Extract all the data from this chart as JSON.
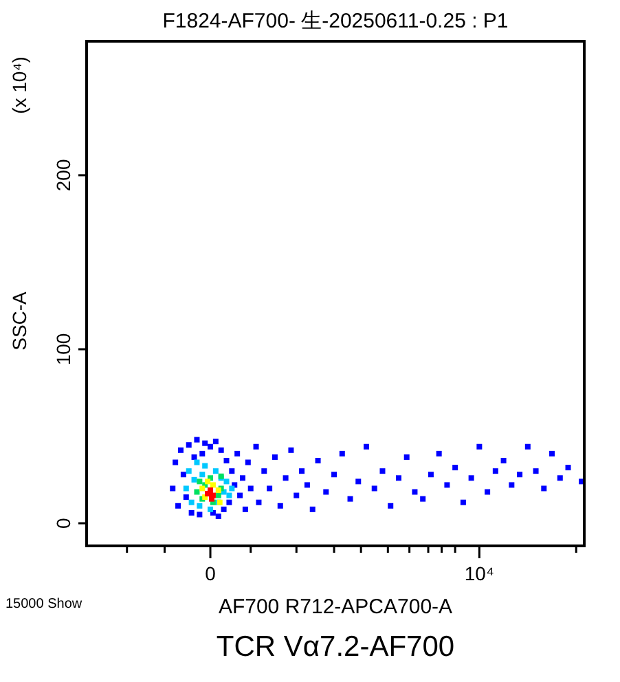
{
  "chart_data": {
    "type": "scatter",
    "title": "F1824-AF700- 生-20250611-0.25 : P1",
    "xlabel": "AF700 R712-APCA700-A",
    "ylabel": "SSC-A",
    "annotations": [
      "(x 10⁴)",
      "15000 Show",
      "TCR Vα7.2-AF700"
    ],
    "xlim": [
      -4600,
      13900
    ],
    "ylim": [
      -13,
      277
    ],
    "xticks": [
      {
        "value": -3100,
        "label": null
      },
      {
        "value": -1700,
        "label": null
      },
      {
        "value": 0,
        "label": "0"
      },
      {
        "value": 1500,
        "label": null
      },
      {
        "value": 3200,
        "label": null
      },
      {
        "value": 4600,
        "label": null
      },
      {
        "value": 5600,
        "label": null
      },
      {
        "value": 6600,
        "label": null
      },
      {
        "value": 7400,
        "label": null
      },
      {
        "value": 8100,
        "label": null
      },
      {
        "value": 8600,
        "label": null
      },
      {
        "value": 9100,
        "label": null
      },
      {
        "value": 10000,
        "label": "10⁴"
      },
      {
        "value": 13600,
        "label": null
      }
    ],
    "yticks": [
      0,
      100,
      200
    ],
    "marker": "square",
    "series": [
      {
        "color": "#0000ff",
        "x": [
          -1400,
          -1300,
          -1200,
          -1100,
          -1000,
          -900,
          -800,
          -700,
          -600,
          -500,
          -400,
          -300,
          -200,
          0,
          100,
          200,
          300,
          400,
          500,
          600,
          700,
          800,
          900,
          1000,
          1100,
          1200,
          1300,
          1400,
          1500,
          1700,
          1800,
          2000,
          2200,
          2400,
          2600,
          2800,
          3000,
          3200,
          3400,
          3600,
          3800,
          4000,
          4300,
          4600,
          4900,
          5200,
          5500,
          5800,
          6100,
          6400,
          6700,
          7000,
          7300,
          7600,
          7900,
          8200,
          8500,
          8800,
          9100,
          9400,
          9700,
          10000,
          10300,
          10600,
          10900,
          11200,
          11500,
          11800,
          12100,
          12400,
          12700,
          13000,
          13300,
          13800
        ],
        "values": [
          20,
          35,
          10,
          42,
          28,
          15,
          45,
          6,
          38,
          48,
          5,
          40,
          46,
          44,
          6,
          47,
          4,
          42,
          8,
          36,
          12,
          30,
          22,
          40,
          16,
          26,
          8,
          35,
          20,
          44,
          12,
          30,
          20,
          38,
          10,
          26,
          42,
          16,
          30,
          22,
          8,
          36,
          18,
          28,
          40,
          14,
          24,
          44,
          20,
          30,
          10,
          26,
          38,
          18,
          14,
          28,
          40,
          22,
          32,
          12,
          26,
          44,
          18,
          30,
          36,
          22,
          28,
          44,
          30,
          20,
          40,
          26,
          32,
          24
        ]
      },
      {
        "color": "#00c8ff",
        "x": [
          -900,
          -800,
          -700,
          -600,
          -500,
          -400,
          -300,
          -200,
          0,
          200,
          300,
          400,
          500,
          600,
          700,
          800
        ],
        "values": [
          20,
          30,
          12,
          25,
          35,
          10,
          28,
          33,
          8,
          30,
          12,
          26,
          18,
          24,
          16,
          20
        ]
      },
      {
        "color": "#00e060",
        "x": [
          -500,
          -400,
          -300,
          -200,
          0,
          100,
          400,
          300,
          400
        ],
        "values": [
          18,
          24,
          14,
          22,
          26,
          12,
          27,
          16,
          20
        ]
      },
      {
        "color": "#ffff00",
        "x": [
          -300,
          -200,
          -100,
          100,
          350,
          300
        ],
        "values": [
          20,
          15,
          24,
          22,
          12,
          19
        ]
      },
      {
        "color": "#ff0000",
        "x": [
          -100,
          0,
          100,
          50
        ],
        "values": [
          17,
          19,
          16,
          14
        ]
      }
    ]
  }
}
